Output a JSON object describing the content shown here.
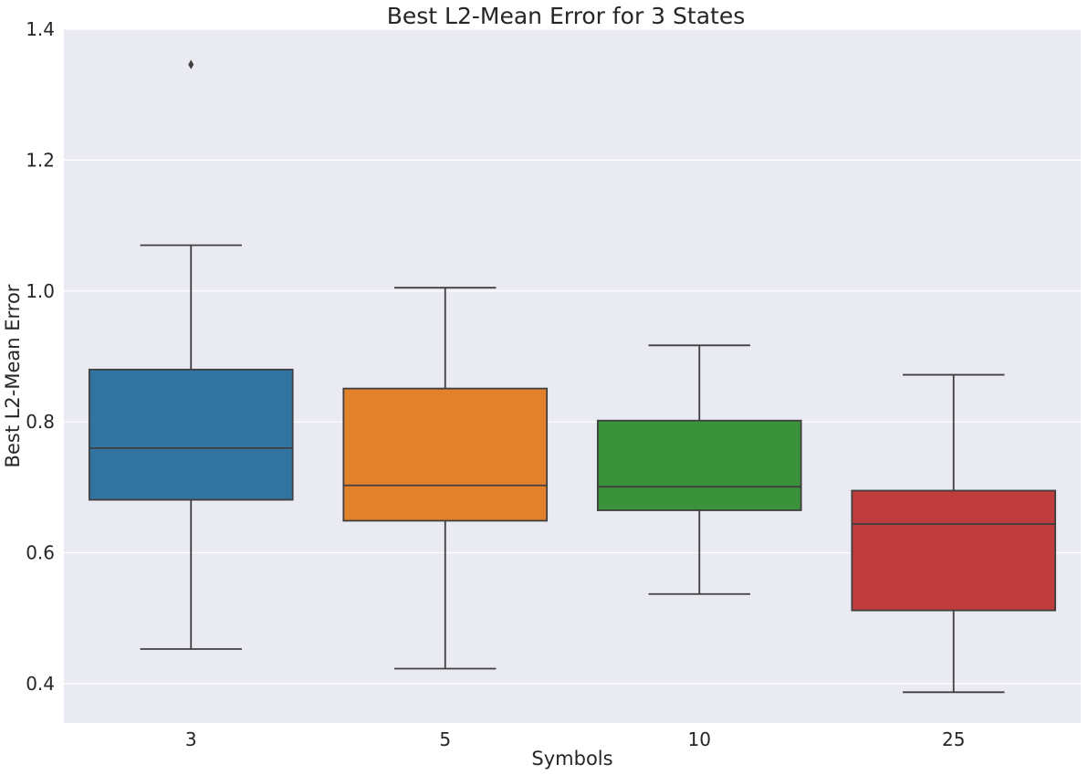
{
  "chart_data": {
    "type": "box",
    "title": "Best L2-Mean Error for 3 States",
    "xlabel": "Symbols",
    "ylabel": "Best L2-Mean Error",
    "categories": [
      "3",
      "5",
      "10",
      "25"
    ],
    "ylim": [
      0.34,
      1.4
    ],
    "yticks": [
      "0.4",
      "0.6",
      "0.8",
      "1.0",
      "1.2",
      "1.4"
    ],
    "grid": true,
    "colors": [
      "#3274a1",
      "#e1812c",
      "#3a923a",
      "#c03d3e"
    ],
    "boxes": [
      {
        "category": "3",
        "whisker_low": 0.453,
        "q1": 0.681,
        "median": 0.76,
        "q3": 0.88,
        "whisker_high": 1.07,
        "outliers": [
          1.346
        ]
      },
      {
        "category": "5",
        "whisker_low": 0.423,
        "q1": 0.649,
        "median": 0.703,
        "q3": 0.851,
        "whisker_high": 1.005,
        "outliers": []
      },
      {
        "category": "10",
        "whisker_low": 0.537,
        "q1": 0.665,
        "median": 0.701,
        "q3": 0.802,
        "whisker_high": 0.917,
        "outliers": []
      },
      {
        "category": "25",
        "whisker_low": 0.387,
        "q1": 0.512,
        "median": 0.644,
        "q3": 0.695,
        "whisker_high": 0.872,
        "outliers": []
      }
    ]
  }
}
